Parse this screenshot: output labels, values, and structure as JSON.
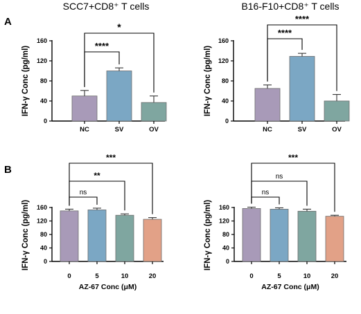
{
  "panels": {
    "a": "A",
    "b": "B"
  },
  "colors": {
    "purple": "#a89ab8",
    "blue": "#7ba7c4",
    "teal": "#7fa6a0",
    "orange": "#e2a187",
    "axis": "#000000"
  },
  "chart_data": [
    {
      "type": "bar",
      "panel": "A",
      "title": "SCC7+CD8⁺ T cells",
      "ylabel": "IFN-γ Conc (pg/ml)",
      "xlabel": "",
      "categories": [
        "NC",
        "SV",
        "OV"
      ],
      "values": [
        50,
        100,
        37
      ],
      "errors": [
        11,
        6,
        13
      ],
      "bar_colors": [
        "#a89ab8",
        "#7ba7c4",
        "#7fa6a0"
      ],
      "ylim": [
        0,
        160
      ],
      "yticks": [
        "0",
        "40",
        "80",
        "120",
        "160"
      ],
      "grid": false,
      "comparisons": [
        {
          "from": "NC",
          "to": "SV",
          "label": "****"
        },
        {
          "from": "NC",
          "to": "OV",
          "label": "*"
        }
      ]
    },
    {
      "type": "bar",
      "panel": "A",
      "title": "B16-F10+CD8⁺ T cells",
      "ylabel": "IFN-γ Conc (pg/ml)",
      "xlabel": "",
      "categories": [
        "NC",
        "SV",
        "OV"
      ],
      "values": [
        65,
        129,
        40
      ],
      "errors": [
        7,
        6,
        13
      ],
      "bar_colors": [
        "#a89ab8",
        "#7ba7c4",
        "#7fa6a0"
      ],
      "ylim": [
        0,
        160
      ],
      "yticks": [
        "0",
        "40",
        "80",
        "120",
        "160"
      ],
      "grid": false,
      "comparisons": [
        {
          "from": "NC",
          "to": "SV",
          "label": "****"
        },
        {
          "from": "NC",
          "to": "OV",
          "label": "****"
        }
      ]
    },
    {
      "type": "bar",
      "panel": "B",
      "title": "",
      "ylabel": "IFN-γ Conc (pg/ml)",
      "xlabel": "AZ-67 Conc (μM)",
      "categories": [
        "0",
        "5",
        "10",
        "20"
      ],
      "values": [
        150,
        153,
        137,
        125
      ],
      "errors": [
        5,
        5,
        4,
        5
      ],
      "bar_colors": [
        "#a89ab8",
        "#7ba7c4",
        "#7fa6a0",
        "#e2a187"
      ],
      "ylim": [
        0,
        160
      ],
      "yticks": [
        "0",
        "40",
        "80",
        "120",
        "160"
      ],
      "grid": false,
      "comparisons": [
        {
          "from": "0",
          "to": "5",
          "label": "ns"
        },
        {
          "from": "0",
          "to": "10",
          "label": "**"
        },
        {
          "from": "0",
          "to": "20",
          "label": "***"
        }
      ]
    },
    {
      "type": "bar",
      "panel": "B",
      "title": "",
      "ylabel": "IFN-γ Conc (pg/ml)",
      "xlabel": "AZ-67 Conc (μM)",
      "categories": [
        "0",
        "5",
        "10",
        "20"
      ],
      "values": [
        157,
        155,
        149,
        134
      ],
      "errors": [
        4,
        4,
        6,
        3
      ],
      "bar_colors": [
        "#a89ab8",
        "#7ba7c4",
        "#7fa6a0",
        "#e2a187"
      ],
      "ylim": [
        0,
        160
      ],
      "yticks": [
        "0",
        "40",
        "80",
        "120",
        "160"
      ],
      "grid": false,
      "comparisons": [
        {
          "from": "0",
          "to": "5",
          "label": "ns"
        },
        {
          "from": "0",
          "to": "10",
          "label": "ns"
        },
        {
          "from": "0",
          "to": "20",
          "label": "***"
        }
      ]
    }
  ]
}
